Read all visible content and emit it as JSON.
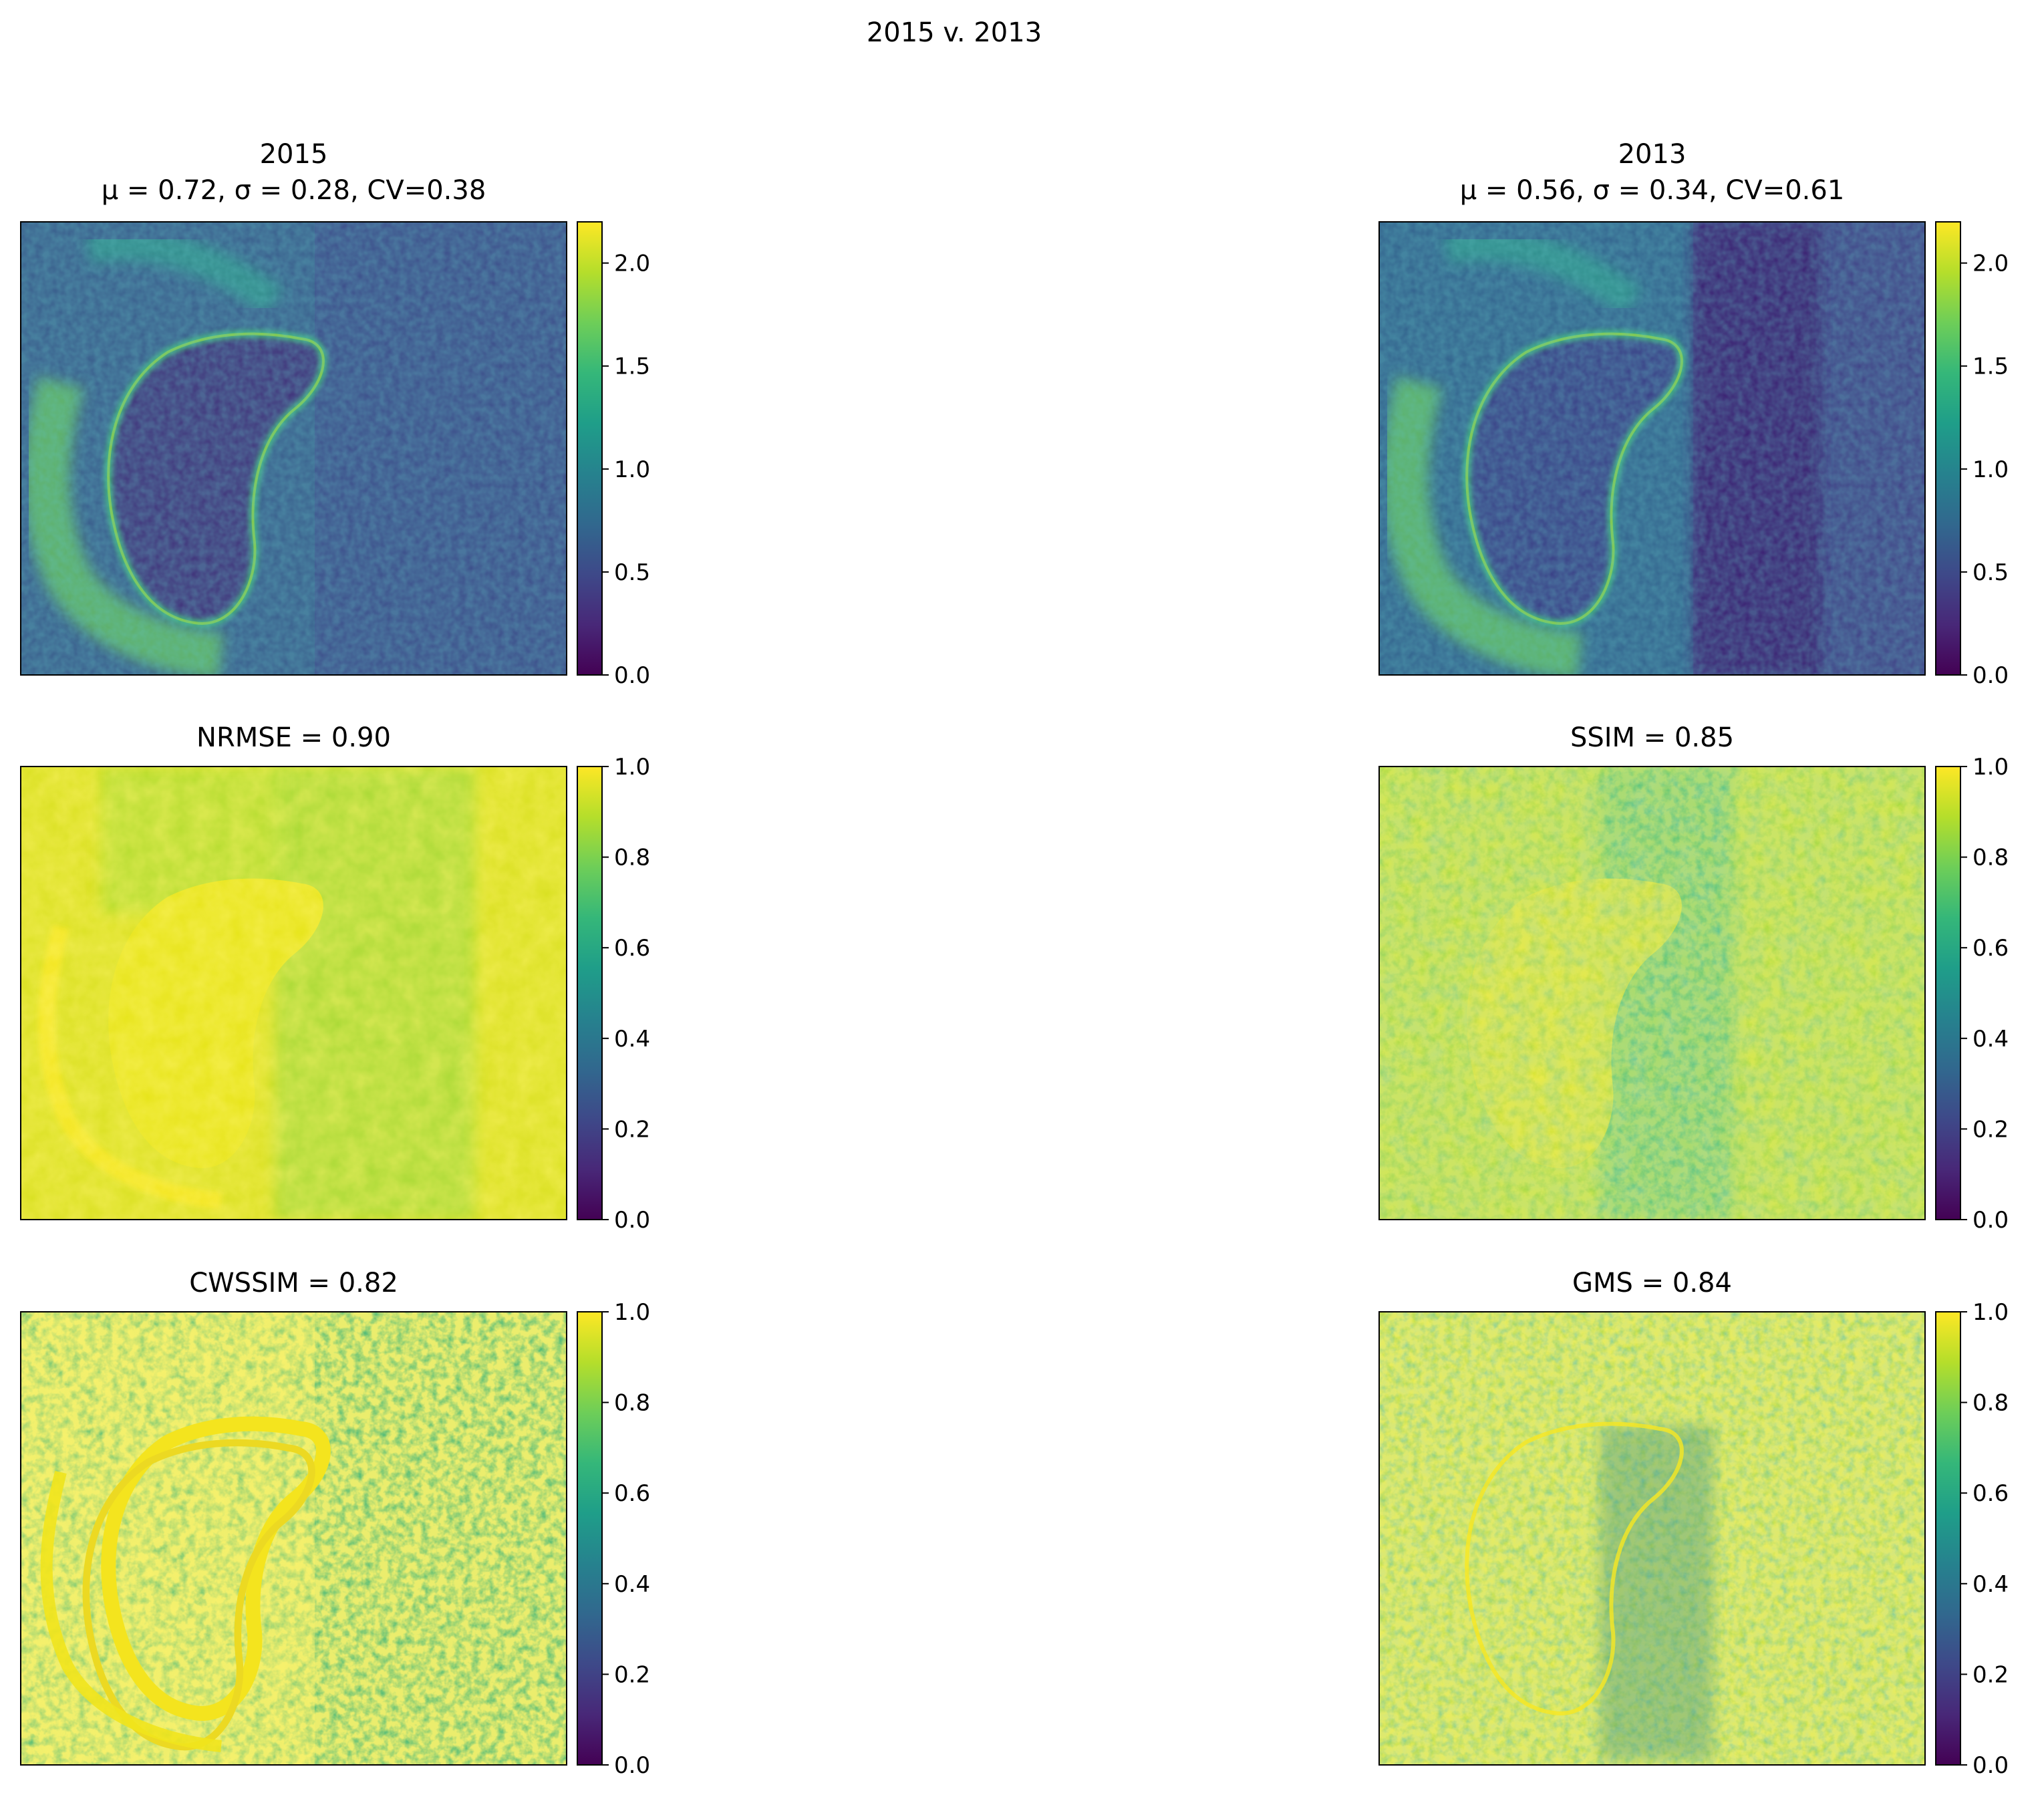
{
  "figure": {
    "suptitle": "2015 v. 2013"
  },
  "panels": [
    {
      "id": "img2015",
      "title_line1": "2015",
      "title_line2": "μ = 0.72, σ = 0.28, CV=0.38",
      "colorbar_ticks": [
        "0.0",
        "0.5",
        "1.0",
        "1.5",
        "2.0"
      ],
      "colorbar_range": [
        0,
        2.2
      ],
      "pattern": "radar"
    },
    {
      "id": "img2013",
      "title_line1": "2013",
      "title_line2": "μ = 0.56, σ = 0.34, CV=0.61",
      "colorbar_ticks": [
        "0.0",
        "0.5",
        "1.0",
        "1.5",
        "2.0"
      ],
      "colorbar_range": [
        0,
        2.2
      ],
      "pattern": "radar-dark"
    },
    {
      "id": "nrmse",
      "title_line1": "NRMSE = 0.90",
      "colorbar_ticks": [
        "0.0",
        "0.2",
        "0.4",
        "0.6",
        "0.8",
        "1.0"
      ],
      "colorbar_range": [
        0,
        1
      ],
      "pattern": "nrmse"
    },
    {
      "id": "ssim",
      "title_line1": "SSIM = 0.85",
      "colorbar_ticks": [
        "0.0",
        "0.2",
        "0.4",
        "0.6",
        "0.8",
        "1.0"
      ],
      "colorbar_range": [
        0,
        1
      ],
      "pattern": "ssim"
    },
    {
      "id": "cwssim",
      "title_line1": "CWSSIM = 0.82",
      "colorbar_ticks": [
        "0.0",
        "0.2",
        "0.4",
        "0.6",
        "0.8",
        "1.0"
      ],
      "colorbar_range": [
        0,
        1
      ],
      "pattern": "cwssim"
    },
    {
      "id": "gms",
      "title_line1": "GMS = 0.84",
      "colorbar_ticks": [
        "0.0",
        "0.2",
        "0.4",
        "0.6",
        "0.8",
        "1.0"
      ],
      "colorbar_range": [
        0,
        1
      ],
      "pattern": "gms"
    }
  ],
  "colors": {
    "viridis": [
      "#440154",
      "#482878",
      "#3e4989",
      "#31688e",
      "#26828e",
      "#1f9e89",
      "#35b779",
      "#6ece58",
      "#b5de2b",
      "#fde725"
    ]
  }
}
